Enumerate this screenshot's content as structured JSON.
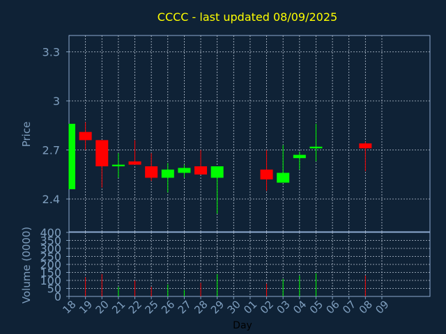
{
  "chart_data": [
    {
      "type": "candlestick",
      "title": "CCCC - last updated 08/09/2025",
      "ylabel": "Price",
      "xlabel": "",
      "ylim": [
        2.2,
        3.4
      ],
      "yticks": [
        2.4,
        2.7,
        3,
        3.3
      ],
      "ytick_labels": [
        "2.4",
        "2.7",
        "3",
        "3.3"
      ],
      "grid": true,
      "x_labels": [
        "18",
        "19",
        "20",
        "21",
        "22",
        "25",
        "26",
        "27",
        "28",
        "29",
        "30",
        "01",
        "02",
        "03",
        "04",
        "05",
        "06",
        "07",
        "08",
        "09"
      ],
      "up_color": "#00ff00",
      "down_color": "#ff0000",
      "candles": [
        {
          "day": "18",
          "open": 2.46,
          "close": 2.86,
          "high": 2.86,
          "low": 2.46
        },
        {
          "day": "19",
          "open": 2.81,
          "close": 2.76,
          "high": 2.87,
          "low": 2.7
        },
        {
          "day": "20",
          "open": 2.76,
          "close": 2.6,
          "high": 2.76,
          "low": 2.47
        },
        {
          "day": "21",
          "open": 2.6,
          "close": 2.61,
          "high": 2.68,
          "low": 2.53
        },
        {
          "day": "22",
          "open": 2.63,
          "close": 2.61,
          "high": 2.76,
          "low": 2.61
        },
        {
          "day": "25",
          "open": 2.6,
          "close": 2.53,
          "high": 2.68,
          "low": 2.51
        },
        {
          "day": "26",
          "open": 2.53,
          "close": 2.58,
          "high": 2.62,
          "low": 2.44
        },
        {
          "day": "27",
          "open": 2.56,
          "close": 2.59,
          "high": 2.61,
          "low": 2.53
        },
        {
          "day": "28",
          "open": 2.6,
          "close": 2.55,
          "high": 2.7,
          "low": 2.55
        },
        {
          "day": "29",
          "open": 2.53,
          "close": 2.6,
          "high": 2.6,
          "low": 2.31
        },
        {
          "day": "02",
          "open": 2.58,
          "close": 2.52,
          "high": 2.7,
          "low": 2.45
        },
        {
          "day": "03",
          "open": 2.5,
          "close": 2.56,
          "high": 2.73,
          "low": 2.5
        },
        {
          "day": "04",
          "open": 2.65,
          "close": 2.67,
          "high": 2.69,
          "low": 2.58
        },
        {
          "day": "05",
          "open": 2.71,
          "close": 2.72,
          "high": 2.86,
          "low": 2.63
        },
        {
          "day": "08",
          "open": 2.74,
          "close": 2.71,
          "high": 2.75,
          "low": 2.57
        }
      ]
    },
    {
      "type": "bar",
      "title": "",
      "ylabel": "Volume (0000)",
      "xlabel": "Day",
      "ylim": [
        0,
        400
      ],
      "yticks": [
        0,
        50,
        100,
        150,
        200,
        250,
        300,
        350,
        400
      ],
      "ytick_labels": [
        "0",
        "50",
        "100",
        "150",
        "200",
        "250",
        "300",
        "350",
        "400"
      ],
      "grid": true,
      "categories": [
        "19",
        "20",
        "21",
        "22",
        "25",
        "26",
        "27",
        "28",
        "29",
        "02",
        "03",
        "04",
        "05",
        "08"
      ],
      "values": [
        120,
        140,
        60,
        100,
        60,
        75,
        40,
        85,
        140,
        80,
        110,
        130,
        145,
        130
      ],
      "bar_colors": [
        "#ff0000",
        "#ff0000",
        "#00ff00",
        "#ff0000",
        "#ff0000",
        "#00ff00",
        "#00ff00",
        "#ff0000",
        "#00ff00",
        "#ff0000",
        "#00ff00",
        "#00ff00",
        "#00ff00",
        "#ff0000"
      ]
    }
  ]
}
